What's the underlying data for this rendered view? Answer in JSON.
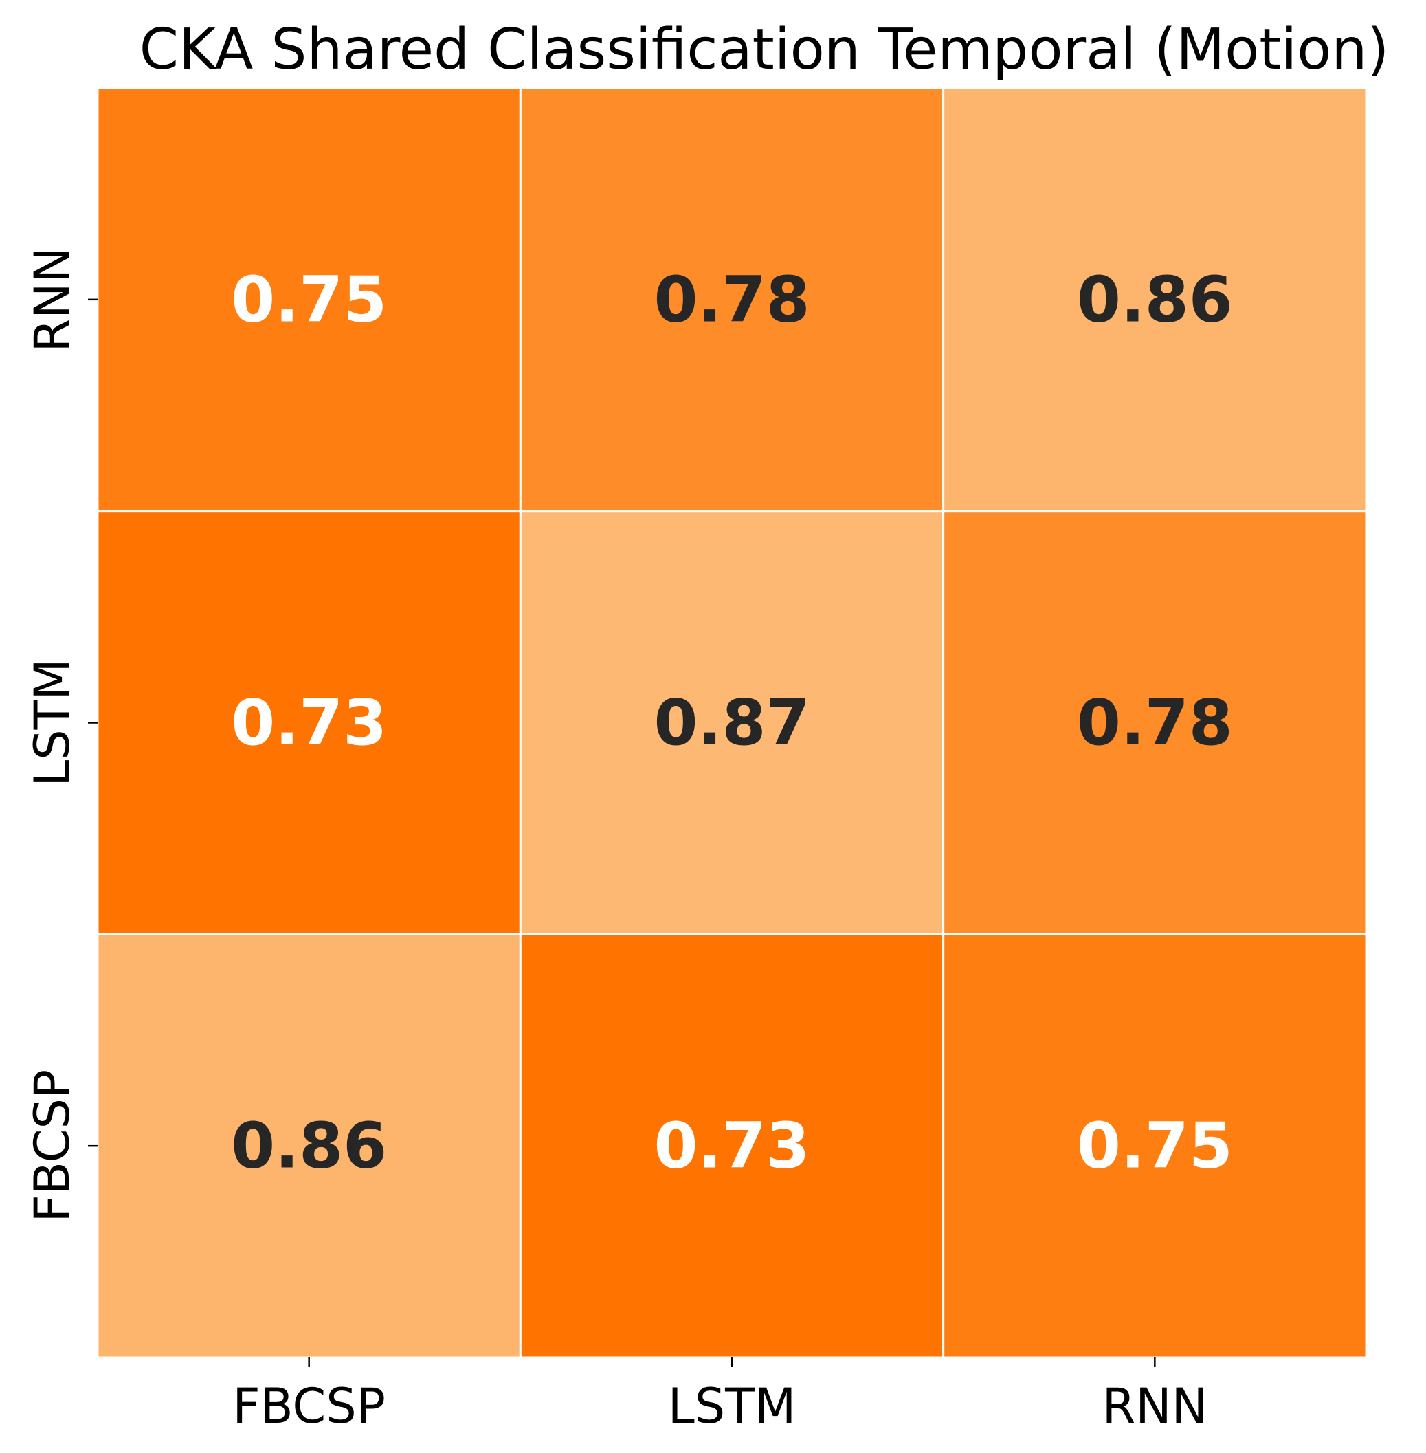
{
  "chart_data": {
    "type": "heatmap",
    "title": "CKA Shared Classification Temporal (Motion)",
    "xlabel": "",
    "ylabel": "",
    "x_categories": [
      "FBCSP",
      "LSTM",
      "RNN"
    ],
    "y_categories": [
      "RNN",
      "LSTM",
      "FBCSP"
    ],
    "values": [
      [
        0.75,
        0.78,
        0.86
      ],
      [
        0.73,
        0.87,
        0.78
      ],
      [
        0.86,
        0.73,
        0.75
      ]
    ],
    "value_format": "2 decimals",
    "colormap": {
      "low_color": "#ff7400",
      "high_color": "#fdb974",
      "vmin": 0.73,
      "vmax": 0.87
    },
    "annotation_colors": {
      "on_dark": "#ffffff",
      "on_light": "#262626"
    },
    "cell_border_color": "#ffffff",
    "colorbar": false,
    "grid": false
  }
}
